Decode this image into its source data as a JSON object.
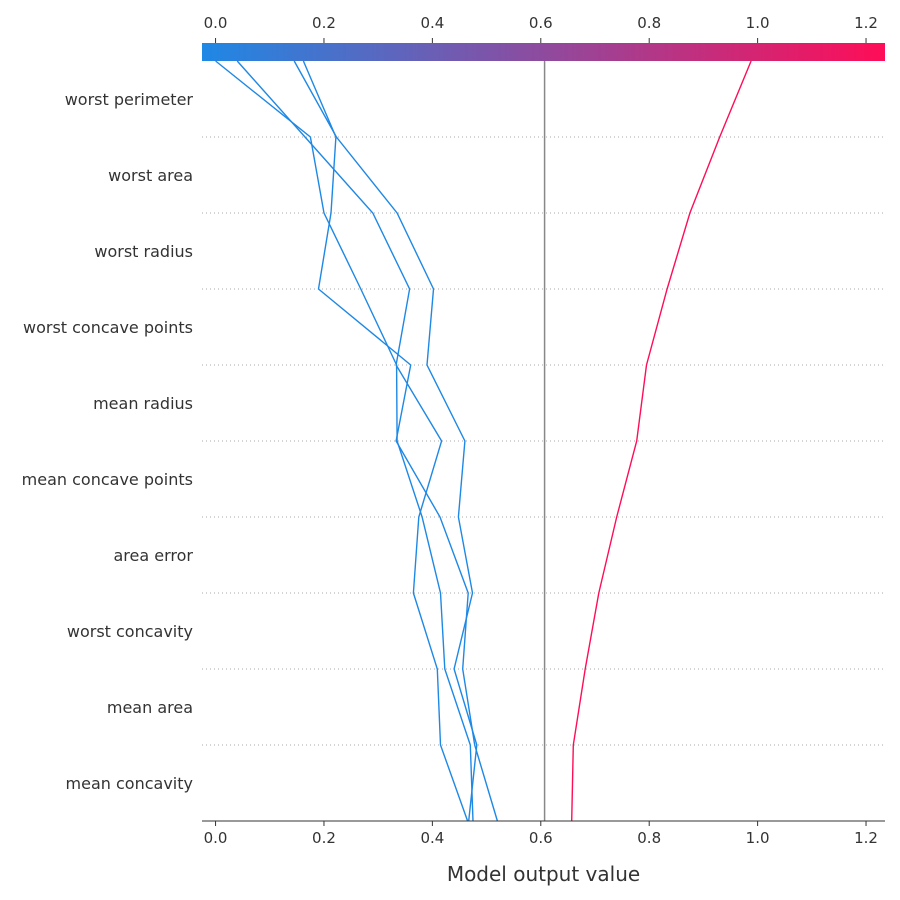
{
  "chart_data": {
    "type": "line",
    "title": "",
    "xlabel": "Model output value",
    "ylabel": "",
    "xlim": [
      -0.025,
      1.235
    ],
    "xticks": [
      0.0,
      0.2,
      0.4,
      0.6,
      0.8,
      1.0,
      1.2
    ],
    "xtick_labels": [
      "0.0",
      "0.2",
      "0.4",
      "0.6",
      "0.8",
      "1.0",
      "1.2"
    ],
    "base_value": 0.607,
    "features": [
      "worst perimeter",
      "worst area",
      "worst radius",
      "worst concave points",
      "mean radius",
      "mean concave points",
      "area error",
      "worst concavity",
      "mean area",
      "mean concavity"
    ],
    "colorbar": {
      "low_color": "#1e88e5",
      "high_color": "#ff0d57"
    },
    "grid": "dotted horizontal",
    "series": [
      {
        "values": [
          0.52,
          0.478,
          0.456,
          0.466,
          0.414,
          0.333,
          0.36,
          0.19,
          0.213,
          0.222,
          0.162
        ]
      },
      {
        "values": [
          0.475,
          0.47,
          0.423,
          0.415,
          0.381,
          0.335,
          0.334,
          0.268,
          0.2,
          0.175,
          0.0
        ]
      },
      {
        "values": [
          0.467,
          0.482,
          0.44,
          0.474,
          0.448,
          0.46,
          0.39,
          0.402,
          0.335,
          0.223,
          0.145
        ]
      },
      {
        "values": [
          0.465,
          0.415,
          0.409,
          0.365,
          0.375,
          0.417,
          0.333,
          0.358,
          0.29,
          0.165,
          0.04
        ]
      },
      {
        "values": [
          0.657,
          0.66,
          0.682,
          0.707,
          0.74,
          0.777,
          0.795,
          0.833,
          0.875,
          0.93,
          0.988
        ]
      }
    ]
  }
}
